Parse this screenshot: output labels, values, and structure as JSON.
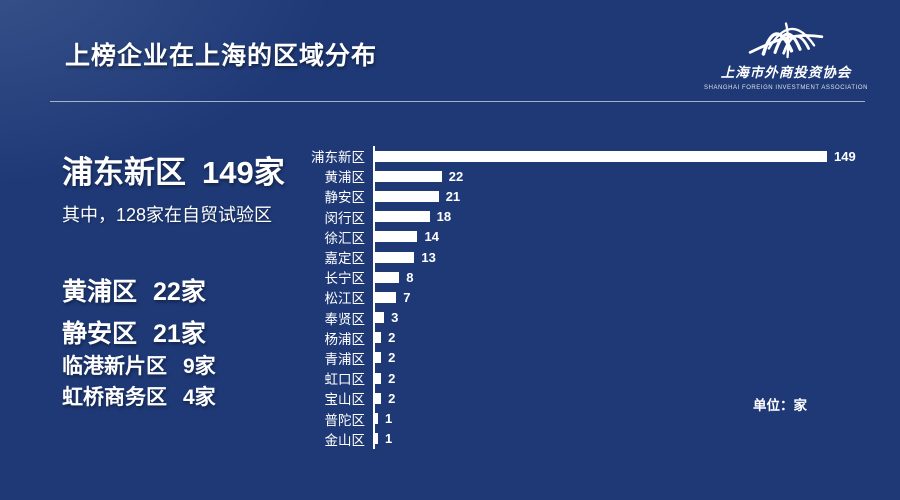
{
  "header": {
    "title": "上榜企业在上海的区域分布",
    "logo": {
      "icon": "dome-arches-icon",
      "name_cn": "上海市外商投资协会",
      "name_en": "SHANGHAI FOREIGN INVESTMENT ASSOCIATION"
    }
  },
  "highlights": {
    "primary": {
      "label": "浦东新区",
      "value": "149家"
    },
    "primary_note": "其中，128家在自贸试验区",
    "secondary": [
      {
        "label": "黄浦区",
        "value": "22家"
      },
      {
        "label": "静安区",
        "value": "21家"
      }
    ],
    "tertiary": [
      {
        "label": "临港新片区",
        "value": "9家"
      },
      {
        "label": "虹桥商务区",
        "value": "4家"
      }
    ]
  },
  "chart_data": {
    "type": "bar",
    "orientation": "horizontal",
    "title": "上榜企业在上海的区域分布",
    "categories": [
      "浦东新区",
      "黄浦区",
      "静安区",
      "闵行区",
      "徐汇区",
      "嘉定区",
      "长宁区",
      "松江区",
      "奉贤区",
      "杨浦区",
      "青浦区",
      "虹口区",
      "宝山区",
      "普陀区",
      "金山区"
    ],
    "values": [
      149,
      22,
      21,
      18,
      14,
      13,
      8,
      7,
      3,
      2,
      2,
      2,
      2,
      1,
      1
    ],
    "unit_label": "单位：家",
    "bar_color": "#ffffff",
    "value_labels_shown": true,
    "xlim": [
      0,
      160
    ],
    "grid": false,
    "legend": "none"
  },
  "colors": {
    "background": "#1e3976",
    "bar": "#ffffff",
    "text": "#ffffff"
  }
}
